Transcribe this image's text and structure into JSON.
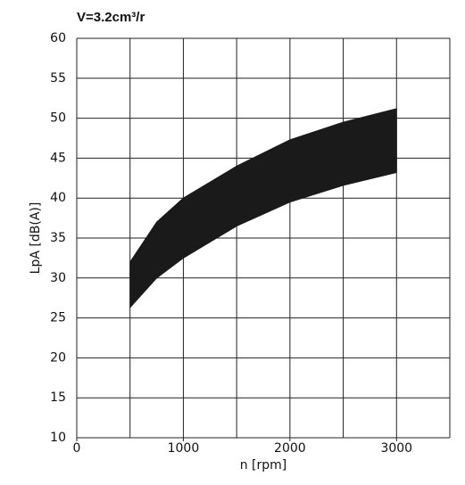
{
  "chart_data": {
    "type": "band",
    "title": "V=3.2cm³/r",
    "x_label": "n [rpm]",
    "y_label": "LpA [dB(A)]",
    "x": [
      500,
      750,
      1000,
      1500,
      2000,
      2500,
      3000
    ],
    "series": [
      {
        "color": "#1a1a1a",
        "values": [
          26.3,
          30,
          32.5,
          36.5,
          39.5,
          41.6,
          43.2
        ]
      },
      {
        "color": "#1a1a1a",
        "values": [
          32,
          37,
          40,
          44,
          47.3,
          49.5,
          51.2
        ]
      }
    ],
    "xlim": [
      0,
      3500
    ],
    "xticks": [
      0,
      1000,
      2000,
      3000
    ],
    "xgrid": [
      0,
      500,
      1000,
      1500,
      2000,
      2500,
      3000,
      3500
    ],
    "ylim": [
      10,
      60
    ],
    "yticks": [
      10,
      15,
      20,
      25,
      30,
      35,
      40,
      45,
      50,
      55,
      60
    ],
    "grid": true
  }
}
